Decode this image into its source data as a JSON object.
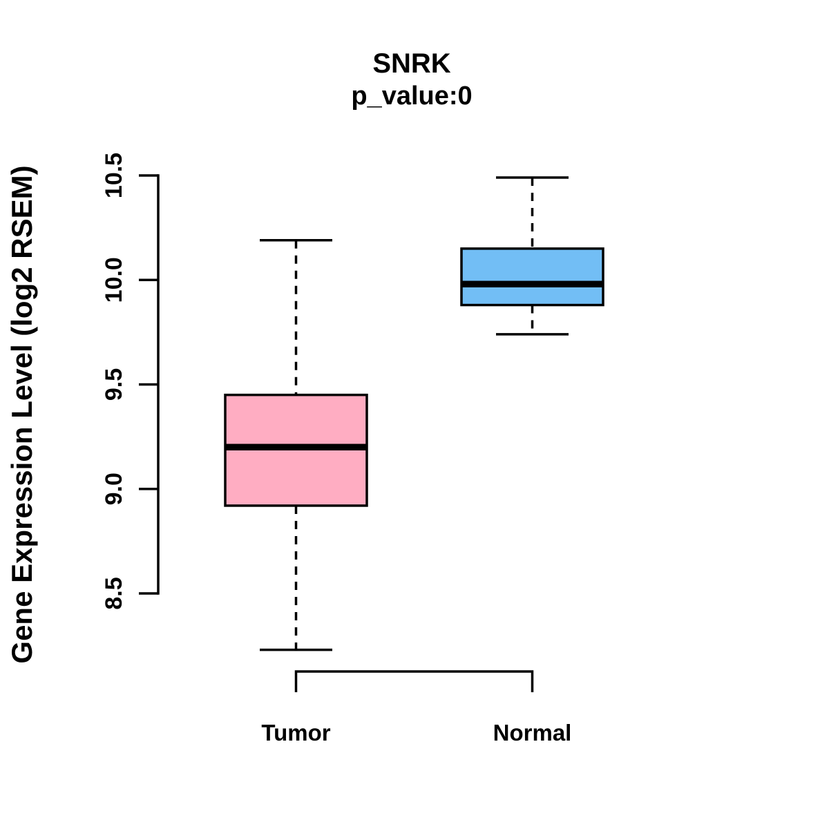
{
  "chart_data": {
    "type": "boxplot",
    "title": "SNRK",
    "subtitle": "p_value:0",
    "ylabel": "Gene Expression Level (log2 RSEM)",
    "ylim": [
      8.5,
      10.5
    ],
    "grid": false,
    "legend": "none",
    "yticks": [
      {
        "value": 10.5,
        "label": "10.5"
      },
      {
        "value": 10.0,
        "label": "10.0"
      },
      {
        "value": 9.5,
        "label": "9.5"
      },
      {
        "value": 9.0,
        "label": "9.0"
      },
      {
        "value": 8.5,
        "label": "8.5"
      }
    ],
    "categories": [
      "Tumor",
      "Normal"
    ],
    "groups": [
      {
        "name": "Tumor",
        "color": "#FFADC2",
        "lower_whisker": 8.23,
        "q1": 8.92,
        "median": 9.2,
        "q3": 9.45,
        "upper_whisker": 10.19
      },
      {
        "name": "Normal",
        "color": "#72BEF5",
        "lower_whisker": 9.74,
        "q1": 9.88,
        "median": 9.98,
        "q3": 10.15,
        "upper_whisker": 10.49
      }
    ],
    "line_color": "#000000",
    "background_color": "#FFFFFF"
  }
}
